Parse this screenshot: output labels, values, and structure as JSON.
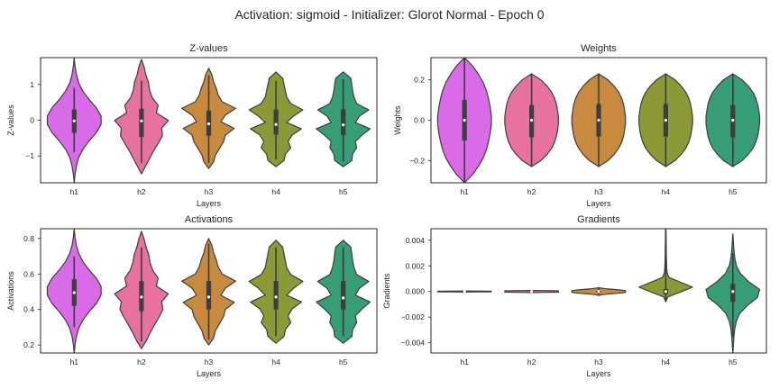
{
  "suptitle": "Activation: sigmoid - Initializer: Glorot Normal - Epoch 0",
  "colors": [
    "#d96be8",
    "#e8729e",
    "#c88a3e",
    "#8b9a37",
    "#379d76"
  ],
  "chart_data": [
    {
      "type": "violin",
      "title": "Z-values",
      "xlabel": "Layers",
      "ylabel": "Z-values",
      "categories": [
        "h1",
        "h2",
        "h3",
        "h4",
        "h5"
      ],
      "ylim": [
        -1.75,
        1.75
      ],
      "yticks": [
        -1,
        0,
        1
      ],
      "ytick_labels": [
        "−1",
        "0",
        "1"
      ],
      "grid": false,
      "violins": [
        {
          "min": -1.75,
          "max": 1.75,
          "q1": -0.35,
          "median": -0.02,
          "q3": 0.3,
          "wlo": -0.9,
          "whi": 0.9,
          "density": [
            0,
            0.03,
            0.08,
            0.16,
            0.32,
            0.55,
            0.82,
            1.0,
            1.0,
            0.82,
            0.55,
            0.32,
            0.16,
            0.08,
            0.03,
            0
          ]
        },
        {
          "min": -1.5,
          "max": 1.7,
          "q1": -0.47,
          "median": -0.02,
          "q3": 0.32,
          "wlo": -1.2,
          "whi": 1.1,
          "density": [
            0,
            0.15,
            0.3,
            0.45,
            0.62,
            0.78,
            0.75,
            1.0,
            0.55,
            0.62,
            0.4,
            0.3,
            0.26,
            0.16,
            0.1,
            0
          ]
        },
        {
          "min": -1.35,
          "max": 1.45,
          "q1": -0.43,
          "median": -0.1,
          "q3": 0.27,
          "wlo": -1.2,
          "whi": 1.25,
          "density": [
            0,
            0.18,
            0.25,
            0.4,
            0.55,
            0.62,
            0.95,
            0.45,
            0.62,
            1.0,
            0.5,
            0.35,
            0.28,
            0.18,
            0.12,
            0
          ]
        },
        {
          "min": -1.3,
          "max": 1.35,
          "q1": -0.4,
          "median": -0.12,
          "q3": 0.3,
          "wlo": -1.1,
          "whi": 1.1,
          "density": [
            0,
            0.3,
            0.35,
            0.55,
            0.45,
            0.6,
            0.95,
            0.4,
            0.65,
            1.0,
            0.55,
            0.4,
            0.35,
            0.3,
            0.25,
            0
          ]
        },
        {
          "min": -1.3,
          "max": 1.35,
          "q1": -0.42,
          "median": -0.13,
          "q3": 0.3,
          "wlo": -1.15,
          "whi": 1.15,
          "density": [
            0,
            0.32,
            0.35,
            0.5,
            0.45,
            0.7,
            1.0,
            0.45,
            0.6,
            0.95,
            0.5,
            0.4,
            0.35,
            0.32,
            0.28,
            0
          ]
        }
      ]
    },
    {
      "type": "violin",
      "title": "Weights",
      "xlabel": "Layers",
      "ylabel": "Weights",
      "categories": [
        "h1",
        "h2",
        "h3",
        "h4",
        "h5"
      ],
      "ylim": [
        -0.31,
        0.31
      ],
      "yticks": [
        -0.2,
        0.0,
        0.2
      ],
      "ytick_labels": [
        "−0.2",
        "0.0",
        "0.2"
      ],
      "grid": false,
      "violins": [
        {
          "min": -0.31,
          "max": 0.31,
          "q1": -0.1,
          "median": 0.0,
          "q3": 0.1,
          "wlo": -0.31,
          "whi": 0.31,
          "density": [
            0,
            0.3,
            0.52,
            0.7,
            0.82,
            0.9,
            0.96,
            1.0,
            1.0,
            0.96,
            0.9,
            0.82,
            0.7,
            0.52,
            0.3,
            0
          ]
        },
        {
          "min": -0.23,
          "max": 0.23,
          "q1": -0.085,
          "median": 0.0,
          "q3": 0.075,
          "wlo": -0.23,
          "whi": 0.23,
          "density": [
            0,
            0.35,
            0.58,
            0.75,
            0.86,
            0.93,
            0.97,
            1.0,
            1.0,
            0.97,
            0.93,
            0.86,
            0.75,
            0.58,
            0.35,
            0
          ]
        },
        {
          "min": -0.23,
          "max": 0.23,
          "q1": -0.08,
          "median": 0.0,
          "q3": 0.08,
          "wlo": -0.23,
          "whi": 0.23,
          "density": [
            0,
            0.35,
            0.58,
            0.75,
            0.86,
            0.93,
            0.97,
            1.0,
            1.0,
            0.97,
            0.93,
            0.86,
            0.75,
            0.58,
            0.35,
            0
          ]
        },
        {
          "min": -0.23,
          "max": 0.23,
          "q1": -0.08,
          "median": 0.0,
          "q3": 0.08,
          "wlo": -0.23,
          "whi": 0.23,
          "density": [
            0,
            0.35,
            0.58,
            0.75,
            0.86,
            0.93,
            0.97,
            1.0,
            1.0,
            0.97,
            0.93,
            0.86,
            0.75,
            0.58,
            0.35,
            0
          ]
        },
        {
          "min": -0.23,
          "max": 0.23,
          "q1": -0.085,
          "median": 0.0,
          "q3": 0.075,
          "wlo": -0.23,
          "whi": 0.23,
          "density": [
            0,
            0.35,
            0.58,
            0.75,
            0.86,
            0.93,
            0.97,
            1.0,
            1.0,
            0.97,
            0.93,
            0.86,
            0.75,
            0.58,
            0.35,
            0
          ]
        }
      ]
    },
    {
      "type": "violin",
      "title": "Activations",
      "xlabel": "Layers",
      "ylabel": "Activations",
      "categories": [
        "h1",
        "h2",
        "h3",
        "h4",
        "h5"
      ],
      "ylim": [
        0.155,
        0.855
      ],
      "yticks": [
        0.2,
        0.4,
        0.6,
        0.8
      ],
      "ytick_labels": [
        "0.2",
        "0.4",
        "0.6",
        "0.8"
      ],
      "grid": false,
      "violins": [
        {
          "min": 0.155,
          "max": 0.855,
          "q1": 0.42,
          "median": 0.495,
          "q3": 0.57,
          "wlo": 0.3,
          "whi": 0.7,
          "density": [
            0,
            0.03,
            0.08,
            0.17,
            0.33,
            0.56,
            0.83,
            1.0,
            1.0,
            0.83,
            0.56,
            0.33,
            0.17,
            0.08,
            0.03,
            0
          ]
        },
        {
          "min": 0.18,
          "max": 0.84,
          "q1": 0.39,
          "median": 0.47,
          "q3": 0.56,
          "wlo": 0.22,
          "whi": 0.75,
          "density": [
            0,
            0.18,
            0.32,
            0.48,
            0.65,
            0.8,
            0.75,
            1.0,
            0.55,
            0.62,
            0.42,
            0.32,
            0.27,
            0.17,
            0.1,
            0
          ]
        },
        {
          "min": 0.2,
          "max": 0.8,
          "q1": 0.4,
          "median": 0.47,
          "q3": 0.56,
          "wlo": 0.23,
          "whi": 0.77,
          "density": [
            0,
            0.18,
            0.25,
            0.4,
            0.55,
            0.62,
            0.95,
            0.45,
            0.62,
            1.0,
            0.5,
            0.35,
            0.28,
            0.18,
            0.12,
            0
          ]
        },
        {
          "min": 0.21,
          "max": 0.79,
          "q1": 0.4,
          "median": 0.47,
          "q3": 0.56,
          "wlo": 0.25,
          "whi": 0.75,
          "density": [
            0,
            0.3,
            0.35,
            0.55,
            0.45,
            0.6,
            0.95,
            0.4,
            0.65,
            1.0,
            0.55,
            0.4,
            0.35,
            0.3,
            0.25,
            0
          ]
        },
        {
          "min": 0.21,
          "max": 0.79,
          "q1": 0.4,
          "median": 0.465,
          "q3": 0.56,
          "wlo": 0.25,
          "whi": 0.75,
          "density": [
            0,
            0.32,
            0.35,
            0.5,
            0.45,
            0.7,
            1.0,
            0.45,
            0.6,
            0.95,
            0.5,
            0.4,
            0.35,
            0.32,
            0.28,
            0
          ]
        }
      ]
    },
    {
      "type": "violin",
      "title": "Gradients",
      "xlabel": "Layers",
      "ylabel": "Gradients",
      "categories": [
        "h1",
        "h2",
        "h3",
        "h4",
        "h5"
      ],
      "ylim": [
        -0.0048,
        0.0049
      ],
      "yticks": [
        -0.004,
        -0.002,
        0.0,
        0.002,
        0.004
      ],
      "ytick_labels": [
        "−0.004",
        "−0.002",
        "0.000",
        "0.002",
        "0.004"
      ],
      "grid": false,
      "violins": [
        {
          "min": -4e-05,
          "max": 4e-05,
          "q1": -1e-05,
          "median": 0.0,
          "q3": 1e-05,
          "wlo": -3e-05,
          "whi": 3e-05,
          "density": [
            0,
            0.5,
            0.8,
            1.0,
            1.0,
            1.0,
            1.0,
            1.0,
            1.0,
            1.0,
            1.0,
            1.0,
            1.0,
            0.8,
            0.5,
            0
          ]
        },
        {
          "min": -8e-05,
          "max": 8e-05,
          "q1": -3e-05,
          "median": 0.0,
          "q3": 3e-05,
          "wlo": -6e-05,
          "whi": 6e-05,
          "density": [
            0,
            0.5,
            0.8,
            1.0,
            1.0,
            1.0,
            1.0,
            1.0,
            1.0,
            1.0,
            1.0,
            1.0,
            1.0,
            0.8,
            0.5,
            0
          ]
        },
        {
          "min": -0.0003,
          "max": 0.0003,
          "q1": -8e-05,
          "median": 0.0,
          "q3": 8e-05,
          "wlo": -0.00025,
          "whi": 0.00025,
          "density": [
            0,
            0.1,
            0.25,
            0.45,
            0.7,
            0.9,
            1.0,
            1.0,
            1.0,
            1.0,
            0.9,
            0.7,
            0.45,
            0.25,
            0.1,
            0
          ]
        },
        {
          "min": -0.0008,
          "max": 0.0049,
          "q1": -0.0002,
          "median": 0.0,
          "q3": 0.0002,
          "wlo": -0.0007,
          "whi": 0.0049,
          "density": [
            0,
            0.08,
            0.55,
            1.0,
            0.55,
            0.12,
            0.05,
            0.035,
            0.03,
            0.025,
            0.02,
            0.018,
            0.015,
            0.012,
            0.01,
            0
          ]
        },
        {
          "min": -0.0048,
          "max": 0.0045,
          "q1": -0.0008,
          "median": 0.0,
          "q3": 0.0006,
          "wlo": -0.0035,
          "whi": 0.003,
          "density": [
            0,
            0.02,
            0.04,
            0.07,
            0.13,
            0.26,
            0.55,
            0.92,
            1.0,
            0.58,
            0.28,
            0.13,
            0.07,
            0.04,
            0.02,
            0
          ]
        }
      ]
    }
  ]
}
